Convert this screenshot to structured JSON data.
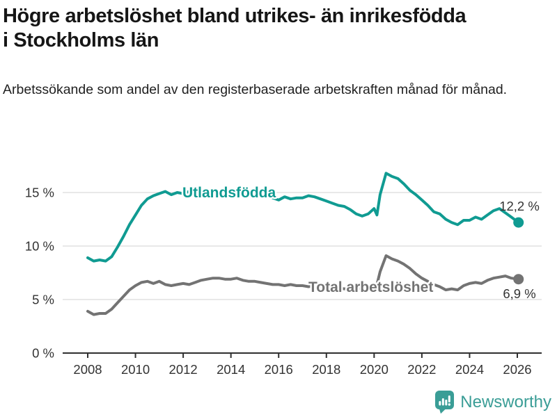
{
  "header": {
    "title": "Högre arbetslöshet bland utrikes- än inrikesfödda i Stockholms län",
    "subtitle": "Arbetssökande som andel av den registerbaserade arbetskraften månad för månad."
  },
  "footer": {
    "brand": "Newsworthy",
    "logo_icon": "bar-chart-speech-bubble-icon"
  },
  "colors": {
    "accent_teal": "#109b92",
    "series_gray": "#737373",
    "grid": "#d9d9d9",
    "axis": "#2f2f2f",
    "tick_text": "#333333",
    "value_text": "#333333",
    "logo_teal": "#3a9d96"
  },
  "chart_data": {
    "type": "line",
    "title": "",
    "xlabel": "",
    "ylabel": "",
    "grid": true,
    "legend_position": "inline-labels",
    "xlim": [
      2007.9,
      2027
    ],
    "ylim": [
      0,
      17.3
    ],
    "x_ticks": [
      2008,
      2010,
      2012,
      2014,
      2016,
      2018,
      2020,
      2022,
      2024,
      2026
    ],
    "y_ticks": [
      {
        "value": 0,
        "label": "0 %"
      },
      {
        "value": 5,
        "label": "5 %"
      },
      {
        "value": 10,
        "label": "10 %"
      },
      {
        "value": 15,
        "label": "15 %"
      }
    ],
    "x": [
      2008,
      2008.25,
      2008.5,
      2008.75,
      2009,
      2009.25,
      2009.5,
      2009.75,
      2010,
      2010.25,
      2010.5,
      2010.75,
      2011,
      2011.25,
      2011.5,
      2011.75,
      2012,
      2012.25,
      2012.5,
      2012.75,
      2013,
      2013.25,
      2013.5,
      2013.75,
      2014,
      2014.25,
      2014.5,
      2014.75,
      2015,
      2015.25,
      2015.5,
      2015.75,
      2016,
      2016.25,
      2016.5,
      2016.75,
      2017,
      2017.25,
      2017.5,
      2017.75,
      2018,
      2018.25,
      2018.5,
      2018.75,
      2019,
      2019.25,
      2019.5,
      2019.75,
      2020,
      2020.12,
      2020.25,
      2020.5,
      2020.75,
      2021,
      2021.25,
      2021.5,
      2021.75,
      2022,
      2022.25,
      2022.5,
      2022.75,
      2023,
      2023.25,
      2023.5,
      2023.75,
      2024,
      2024.25,
      2024.5,
      2024.75,
      2025,
      2025.25,
      2025.5,
      2025.75,
      2026.05
    ],
    "series": [
      {
        "name": "Utlandsfödda",
        "color": "#109b92",
        "end_label": "12,2 %",
        "end_value": 12.2,
        "values": [
          8.9,
          8.6,
          8.7,
          8.6,
          9.0,
          9.9,
          10.9,
          12.0,
          12.9,
          13.8,
          14.4,
          14.7,
          14.9,
          15.1,
          14.8,
          15.0,
          14.9,
          15.1,
          15.0,
          15.1,
          15.0,
          15.2,
          15.1,
          15.0,
          15.1,
          14.9,
          14.8,
          14.9,
          14.7,
          14.8,
          14.6,
          14.5,
          14.3,
          14.6,
          14.4,
          14.5,
          14.5,
          14.7,
          14.6,
          14.4,
          14.2,
          14.0,
          13.8,
          13.7,
          13.4,
          13.0,
          12.8,
          13.0,
          13.5,
          12.9,
          14.8,
          16.8,
          16.5,
          16.3,
          15.8,
          15.2,
          14.8,
          14.3,
          13.8,
          13.2,
          13.0,
          12.5,
          12.2,
          12.0,
          12.4,
          12.4,
          12.7,
          12.5,
          12.9,
          13.3,
          13.5,
          13.1,
          12.7,
          12.2
        ]
      },
      {
        "name": "Total arbetslöshet",
        "color": "#737373",
        "end_label": "6,9 %",
        "end_value": 6.9,
        "values": [
          3.9,
          3.6,
          3.7,
          3.7,
          4.1,
          4.7,
          5.3,
          5.9,
          6.3,
          6.6,
          6.7,
          6.5,
          6.7,
          6.4,
          6.3,
          6.4,
          6.5,
          6.4,
          6.6,
          6.8,
          6.9,
          7.0,
          7.0,
          6.9,
          6.9,
          7.0,
          6.8,
          6.7,
          6.7,
          6.6,
          6.5,
          6.4,
          6.4,
          6.3,
          6.4,
          6.3,
          6.3,
          6.2,
          6.3,
          6.2,
          6.2,
          6.1,
          6.1,
          6.0,
          6.0,
          6.1,
          6.0,
          6.1,
          6.3,
          6.4,
          7.6,
          9.1,
          8.8,
          8.6,
          8.3,
          7.9,
          7.4,
          7.0,
          6.7,
          6.4,
          6.2,
          5.9,
          6.0,
          5.9,
          6.3,
          6.5,
          6.6,
          6.5,
          6.8,
          7.0,
          7.1,
          7.2,
          7.0,
          6.9
        ]
      }
    ]
  }
}
